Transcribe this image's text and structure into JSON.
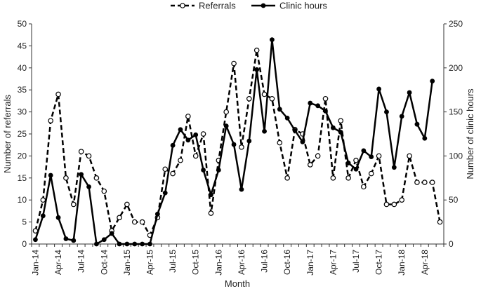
{
  "chart_data": {
    "type": "line",
    "title": "",
    "xlabel": "Month",
    "ylabel_left": "Number of referrals",
    "ylabel_right": "Number of clinic hours",
    "ylim_left": [
      0,
      50
    ],
    "ylim_right": [
      0,
      250
    ],
    "yticks_left": [
      "0",
      "5",
      "10",
      "15",
      "20",
      "25",
      "30",
      "35",
      "40",
      "45",
      "50"
    ],
    "yticks_right": [
      "0",
      "50",
      "100",
      "150",
      "200",
      "250"
    ],
    "grid": false,
    "legend_position": "top-center",
    "months": [
      "Jan-14",
      "Feb-14",
      "Mar-14",
      "Apr-14",
      "May-14",
      "Jun-14",
      "Jul-14",
      "Aug-14",
      "Sep-14",
      "Oct-14",
      "Nov-14",
      "Dec-14",
      "Jan-15",
      "Feb-15",
      "Mar-15",
      "Apr-15",
      "May-15",
      "Jun-15",
      "Jul-15",
      "Aug-15",
      "Sep-15",
      "Oct-15",
      "Nov-15",
      "Dec-15",
      "Jan-16",
      "Feb-16",
      "Mar-16",
      "Apr-16",
      "May-16",
      "Jun-16",
      "Jul-16",
      "Aug-16",
      "Sep-16",
      "Oct-16",
      "Nov-16",
      "Dec-16",
      "Jan-17",
      "Feb-17",
      "Mar-17",
      "Apr-17",
      "May-17",
      "Jun-17",
      "Jul-17",
      "Aug-17",
      "Sep-17",
      "Oct-17",
      "Nov-17",
      "Dec-17",
      "Jan-18",
      "Feb-18",
      "Mar-18",
      "Apr-18",
      "May-18",
      "Jun-18"
    ],
    "x_tick_labels": [
      "Jan-14",
      "Apr-14",
      "Jul-14",
      "Oct-14",
      "Jan-15",
      "Apr-15",
      "Jul-15",
      "Oct-15",
      "Jan-16",
      "Apr-16",
      "Jul-16",
      "Oct-16",
      "Jan-17",
      "Apr-17",
      "Jul-17",
      "Oct-17",
      "Jan-18",
      "Apr-18"
    ],
    "series": [
      {
        "name": "Referrals",
        "axis": "left",
        "style": "dashed-open-markers",
        "color": "#000000",
        "values": [
          3,
          10,
          28,
          34,
          15,
          9,
          21,
          20,
          15,
          12,
          3,
          6,
          9,
          5,
          5,
          2,
          6,
          17,
          16,
          19,
          29,
          20,
          25,
          7,
          19,
          30,
          41,
          22,
          33,
          44,
          34,
          33,
          23,
          15,
          26,
          25,
          18,
          20,
          33,
          15,
          28,
          15,
          19,
          13,
          16,
          20,
          9,
          9,
          10,
          20,
          14,
          14,
          14,
          5
        ]
      },
      {
        "name": "Clinic hours",
        "axis": "right",
        "style": "solid-filled-markers",
        "color": "#000000",
        "values": [
          5,
          32,
          78,
          30,
          6,
          4,
          79,
          65,
          0,
          5,
          12,
          0,
          0,
          0,
          0,
          0,
          34,
          58,
          112,
          130,
          118,
          124,
          84,
          56,
          84,
          134,
          113,
          62,
          117,
          198,
          128,
          232,
          153,
          143,
          129,
          116,
          160,
          157,
          151,
          132,
          127,
          92,
          85,
          106,
          99,
          176,
          150,
          87,
          145,
          172,
          136,
          120,
          185,
          null
        ]
      }
    ]
  }
}
